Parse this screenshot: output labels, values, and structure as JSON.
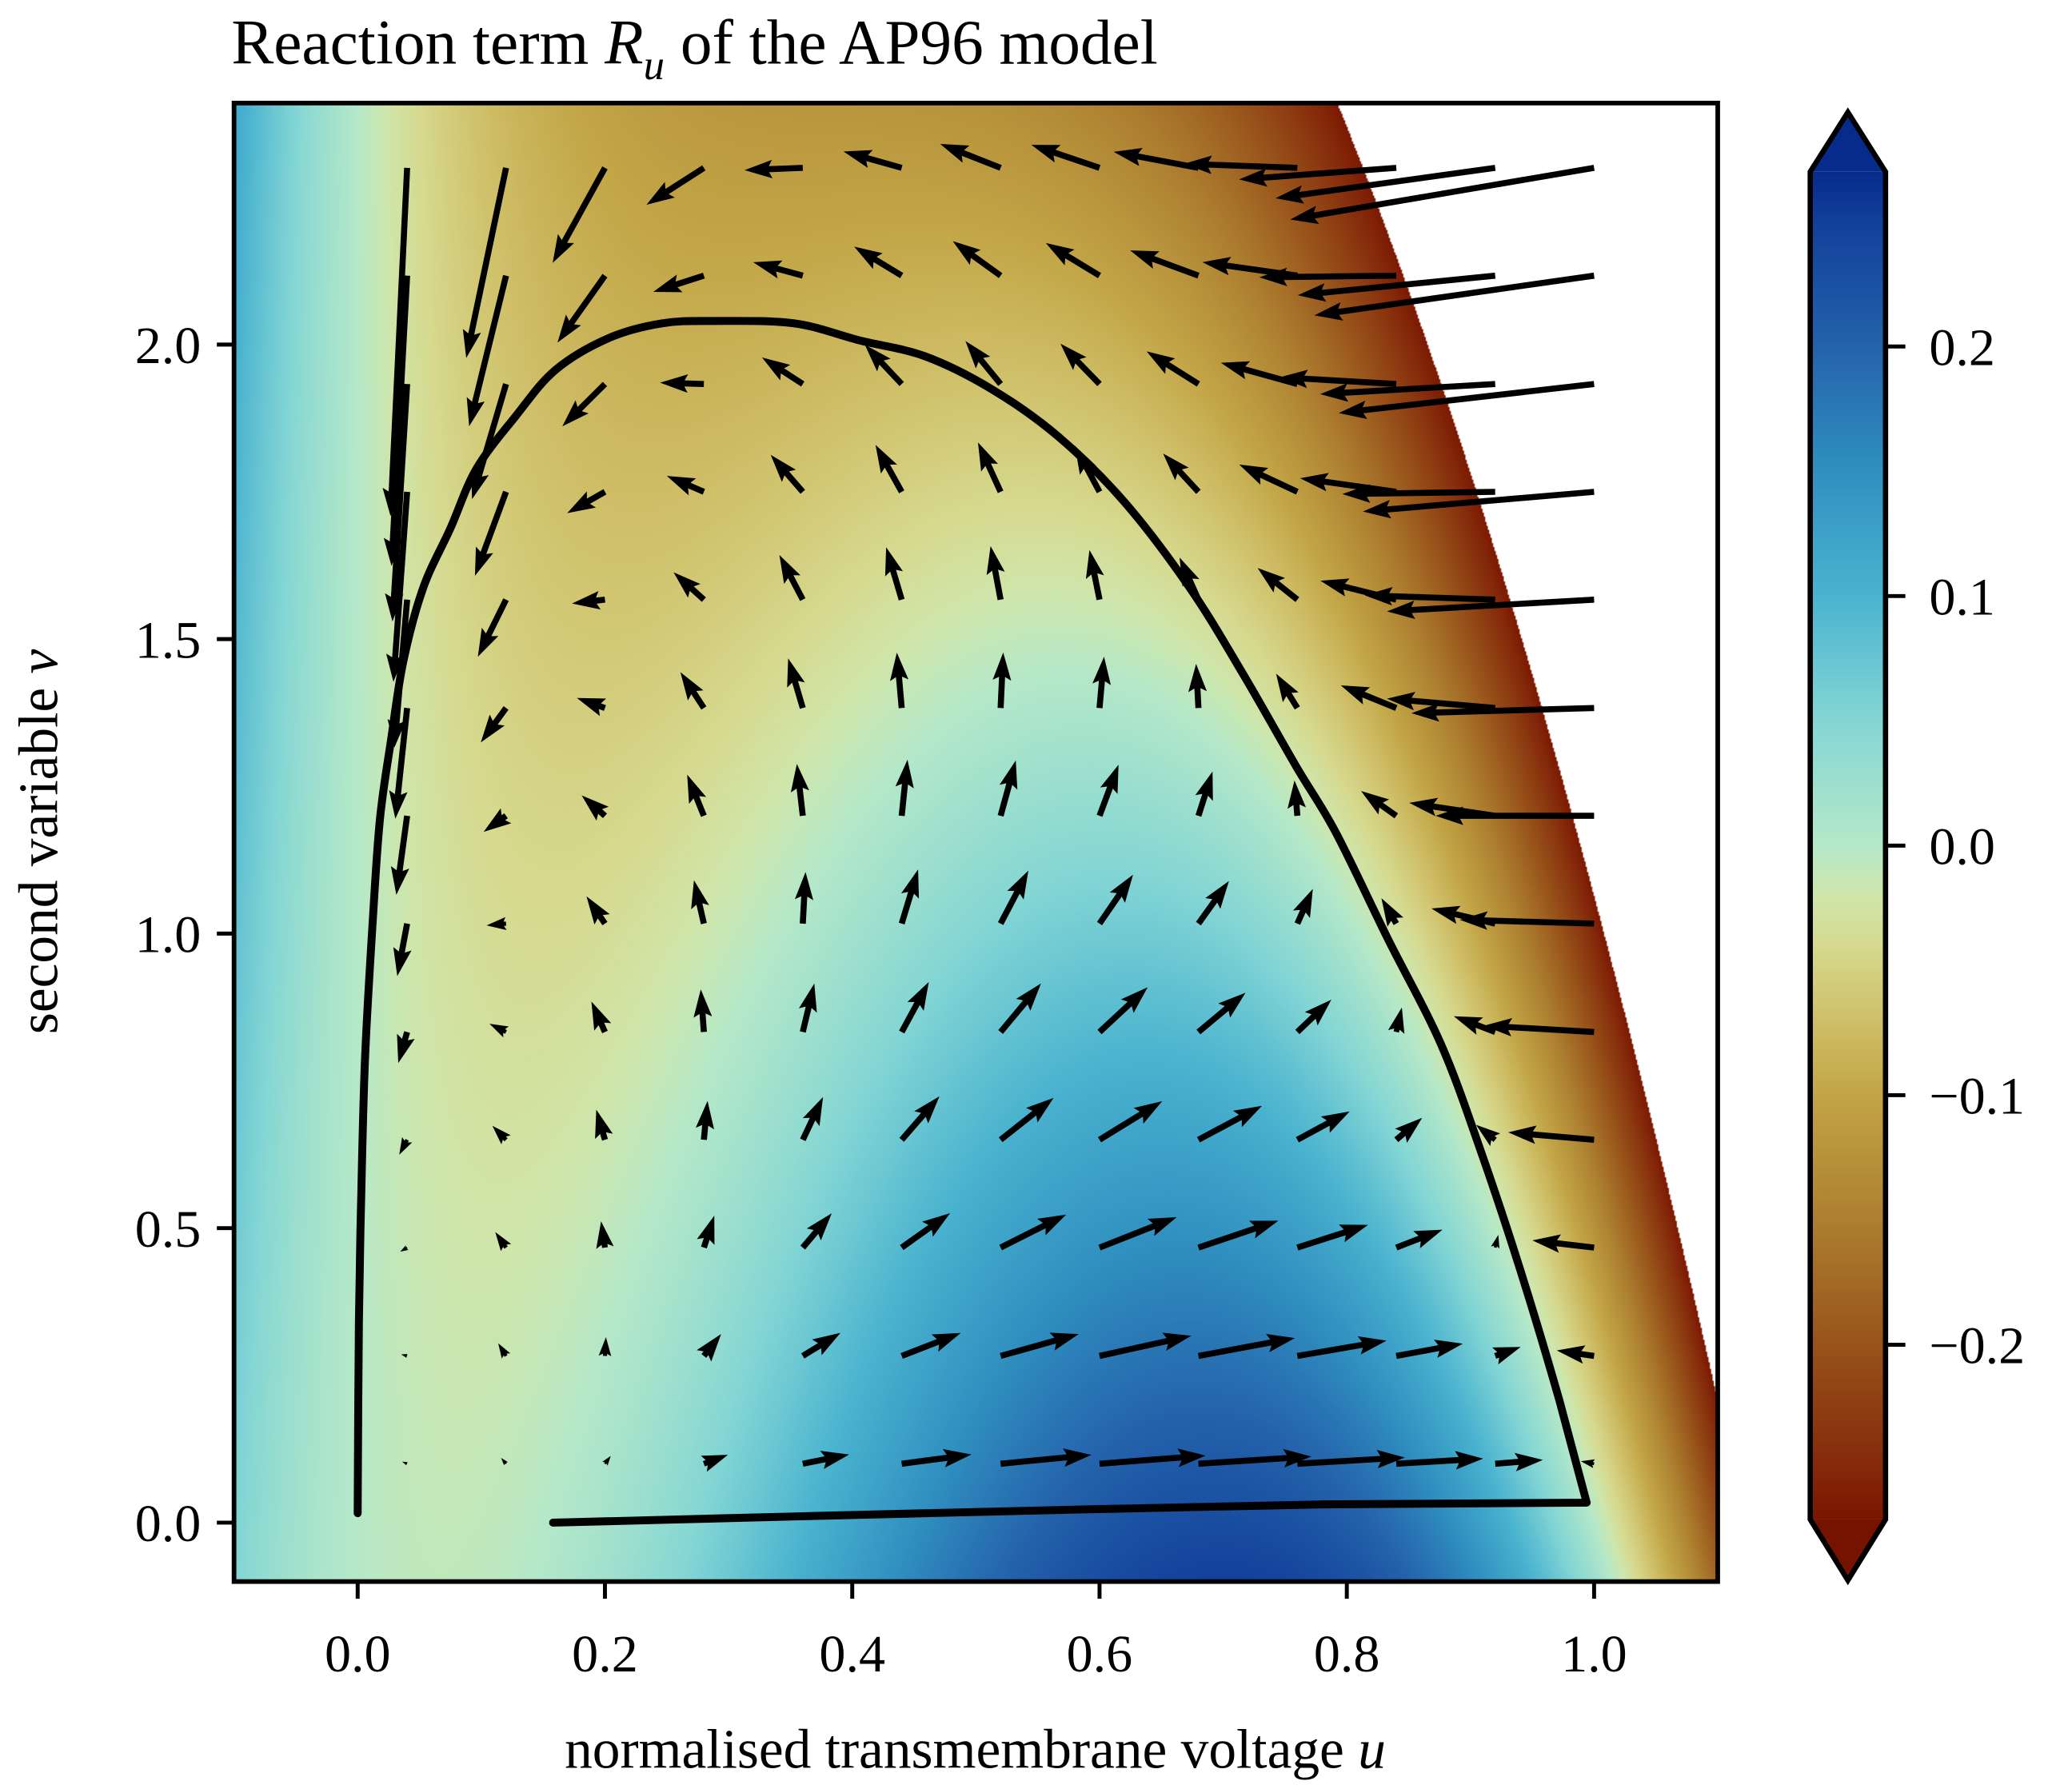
{
  "chart_data": {
    "type": "heatmap",
    "title": {
      "prefix": "Reaction term ",
      "symbol": "R",
      "subscript": "u",
      "suffix": " of the AP96 model"
    },
    "xlabel": {
      "text": "normalised transmembrane voltage ",
      "symbol": "u"
    },
    "ylabel": {
      "text": "second variable ",
      "symbol": "v"
    },
    "xlim": [
      -0.1,
      1.1
    ],
    "ylim": [
      -0.1,
      2.41
    ],
    "xticks": [
      0.0,
      0.2,
      0.4,
      0.6,
      0.8,
      1.0
    ],
    "xtick_labels": [
      "0.0",
      "0.2",
      "0.4",
      "0.6",
      "0.8",
      "1.0"
    ],
    "yticks": [
      0.0,
      0.5,
      1.0,
      1.5,
      2.0
    ],
    "ytick_labels": [
      "0.0",
      "0.5",
      "1.0",
      "1.5",
      "2.0"
    ],
    "grid": false,
    "colorbar": {
      "range": [
        -0.27,
        0.27
      ],
      "extend": "both",
      "ticks": [
        0.2,
        0.1,
        0.0,
        -0.1,
        -0.2
      ],
      "tick_labels": [
        "0.2",
        "0.1",
        "0.0",
        "−0.1",
        "−0.2"
      ],
      "over_color": "#072b8c",
      "under_color": "#761300",
      "colormap": [
        [
          -0.27,
          "#7a1500"
        ],
        [
          -0.25,
          "#84280a"
        ],
        [
          -0.2,
          "#98531a"
        ],
        [
          -0.15,
          "#ad7f30"
        ],
        [
          -0.1,
          "#c2a546"
        ],
        [
          -0.07,
          "#cfbf68"
        ],
        [
          -0.04,
          "#d6d98e"
        ],
        [
          -0.02,
          "#cfe6ab"
        ],
        [
          0.0,
          "#b5e8c8"
        ],
        [
          0.05,
          "#84d6d4"
        ],
        [
          0.1,
          "#4ab3cf"
        ],
        [
          0.15,
          "#3090c0"
        ],
        [
          0.2,
          "#2462ab"
        ],
        [
          0.25,
          "#11409a"
        ],
        [
          0.27,
          "#072b8c"
        ]
      ]
    },
    "masked_color": "#ffffff",
    "quiver": {
      "u": [
        0.04,
        0.12,
        0.2,
        0.28,
        0.36,
        0.44,
        0.52,
        0.6,
        0.68,
        0.76,
        0.84,
        0.92,
        1.0
      ],
      "v": [
        0.1,
        0.283,
        0.467,
        0.65,
        0.833,
        1.017,
        1.2,
        1.383,
        1.567,
        1.75,
        1.933,
        2.117,
        2.3
      ],
      "color": "#000000"
    },
    "trajectory": {
      "color": "#000000",
      "u": [
        0.158,
        0.459,
        0.78,
        0.994,
        0.972,
        0.94,
        0.908,
        0.876,
        0.833,
        0.791,
        0.759,
        0.716,
        0.673,
        0.62,
        0.566,
        0.513,
        0.459,
        0.406,
        0.353,
        0.288,
        0.246,
        0.203,
        0.16,
        0.128,
        0.096,
        0.075,
        0.053,
        0.037,
        0.027,
        0.018,
        0.012,
        0.006,
        0.003,
        0.001,
        0.0
      ],
      "v": [
        0.0,
        0.016,
        0.031,
        0.034,
        0.207,
        0.431,
        0.633,
        0.813,
        0.992,
        1.172,
        1.284,
        1.441,
        1.587,
        1.733,
        1.845,
        1.924,
        1.98,
        2.007,
        2.036,
        2.04,
        2.036,
        2.011,
        1.957,
        1.879,
        1.789,
        1.688,
        1.587,
        1.463,
        1.329,
        1.194,
        1.015,
        0.79,
        0.566,
        0.341,
        0.016
      ]
    }
  }
}
